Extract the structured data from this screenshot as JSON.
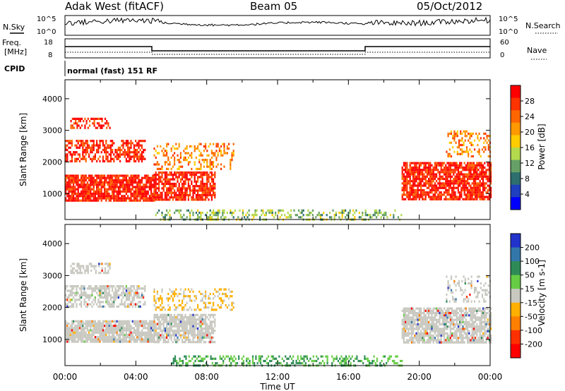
{
  "header": {
    "site": "Adak West (fitACF)",
    "beam": "Beam 05",
    "date": "05/Oct/2012"
  },
  "top_panels": {
    "nsky_label": "N.Sky",
    "nsky_ticks": [
      "10^5",
      "10^0"
    ],
    "nsearch_label": "N.Search",
    "freq_label_1": "Freq.",
    "freq_label_2": "[MHz]",
    "freq_ticks": [
      "18",
      "8"
    ],
    "nave_label": "Nave",
    "nave_ticks": [
      "60",
      "0"
    ],
    "cpid_label": "CPID",
    "cpid_value": "normal (fast) 151 RF"
  },
  "power_colorbar": {
    "label": "Power [dB]",
    "ticks": [
      "28",
      "24",
      "20",
      "16",
      "12",
      "8",
      "4"
    ],
    "colors": [
      "#ff0000",
      "#ff3300",
      "#ff6600",
      "#ff9900",
      "#ffcc00",
      "#b3d94d",
      "#66a066",
      "#2d6e6e",
      "#1f3fbf",
      "#0000ff"
    ]
  },
  "velocity_colorbar": {
    "label": "Velocity [m s-1]",
    "ticks": [
      "200",
      "100",
      "50",
      "15",
      "-15",
      "-50",
      "-100",
      "-200"
    ],
    "colors": [
      "#2233cc",
      "#3377aa",
      "#2e8b57",
      "#66cc44",
      "#c8c8c0",
      "#ffb000",
      "#ff7f00",
      "#ff3000",
      "#ff0000"
    ]
  },
  "chart_data": [
    {
      "type": "heatmap",
      "panel": "power",
      "ylabel": "Slant Range [km]",
      "yticks": [
        "1000",
        "2000",
        "3000",
        "4000"
      ],
      "ylim": [
        180,
        4600
      ],
      "xlim": [
        0,
        24
      ],
      "regions": [
        {
          "t0": 0.0,
          "t1": 5.0,
          "r0": 800,
          "r1": 1600,
          "v": 28,
          "density": 0.85
        },
        {
          "t0": 5.0,
          "t1": 8.5,
          "r0": 800,
          "r1": 1700,
          "v": 26,
          "density": 0.75
        },
        {
          "t0": 0.0,
          "t1": 4.5,
          "r0": 2000,
          "r1": 2700,
          "v": 26,
          "density": 0.6
        },
        {
          "t0": 0.3,
          "t1": 2.5,
          "r0": 3100,
          "r1": 3400,
          "v": 27,
          "density": 0.4
        },
        {
          "t0": 5.0,
          "t1": 9.5,
          "r0": 1800,
          "r1": 2600,
          "v": 22,
          "density": 0.3
        },
        {
          "t0": 19.0,
          "t1": 24.0,
          "r0": 800,
          "r1": 2000,
          "v": 27,
          "density": 0.8
        },
        {
          "t0": 21.5,
          "t1": 24.0,
          "r0": 2200,
          "r1": 3000,
          "v": 22,
          "density": 0.3
        },
        {
          "t0": 5.0,
          "t1": 19.0,
          "r0": 200,
          "r1": 500,
          "v": 10,
          "density": 0.35
        }
      ]
    },
    {
      "type": "heatmap",
      "panel": "velocity",
      "ylabel": "Slant Range [km]",
      "yticks": [
        "1000",
        "2000",
        "3000",
        "4000"
      ],
      "ylim": [
        180,
        4600
      ],
      "xlim": [
        0,
        24
      ],
      "xticks": [
        "00:00",
        "04:00",
        "08:00",
        "12:00",
        "16:00",
        "20:00",
        "00:00"
      ],
      "xlabel": "Time UT",
      "regions": [
        {
          "t0": 0.0,
          "t1": 5.0,
          "r0": 900,
          "r1": 1600,
          "v": 0,
          "density": 0.9
        },
        {
          "t0": 5.0,
          "t1": 8.5,
          "r0": 900,
          "r1": 1800,
          "v": 0,
          "density": 0.8
        },
        {
          "t0": 0.0,
          "t1": 4.5,
          "r0": 2000,
          "r1": 2700,
          "v": 0,
          "density": 0.6
        },
        {
          "t0": 0.3,
          "t1": 2.5,
          "r0": 3100,
          "r1": 3400,
          "v": 0,
          "density": 0.5
        },
        {
          "t0": 5.0,
          "t1": 9.5,
          "r0": 1900,
          "r1": 2600,
          "v": -40,
          "density": 0.3
        },
        {
          "t0": 19.0,
          "t1": 24.0,
          "r0": 900,
          "r1": 2000,
          "v": 0,
          "density": 0.8
        },
        {
          "t0": 21.5,
          "t1": 24.0,
          "r0": 2200,
          "r1": 3000,
          "v": 0,
          "density": 0.3
        },
        {
          "t0": 6.0,
          "t1": 19.0,
          "r0": 200,
          "r1": 500,
          "v": 20,
          "density": 0.4
        }
      ]
    }
  ]
}
